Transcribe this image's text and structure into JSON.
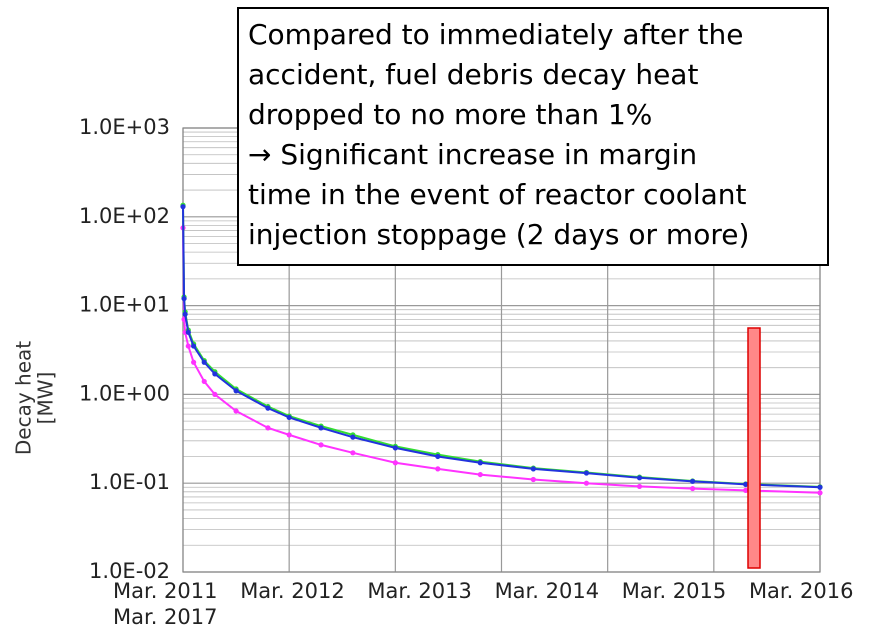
{
  "chart_data": {
    "type": "line",
    "annotation": [
      "Compared to immediately after the",
      "accident, fuel debris decay heat",
      "dropped to no more than 1%",
      "→ Significant increase in margin",
      "time in the event of reactor coolant",
      "injection stoppage (2 days or more)"
    ],
    "ylabel": [
      "Decay heat",
      "[MW]"
    ],
    "log_y": true,
    "grid": true,
    "x": [
      2011.2,
      2011.21,
      2011.22,
      2011.25,
      2011.3,
      2011.4,
      2011.5,
      2011.7,
      2012.0,
      2012.2,
      2012.5,
      2012.8,
      2013.2,
      2013.6,
      2014.0,
      2014.5,
      2015.0,
      2015.5,
      2016.0,
      2016.5,
      2017.2
    ],
    "series": [
      {
        "color": "#ff33ff",
        "values": [
          75,
          7,
          5,
          3.5,
          2.3,
          1.4,
          1.0,
          0.65,
          0.42,
          0.35,
          0.27,
          0.22,
          0.17,
          0.145,
          0.125,
          0.11,
          0.1,
          0.092,
          0.087,
          0.083,
          0.078
        ]
      },
      {
        "color": "#33dd33",
        "values": [
          135,
          12.5,
          8.5,
          5.3,
          3.7,
          2.4,
          1.8,
          1.15,
          0.73,
          0.57,
          0.44,
          0.35,
          0.26,
          0.21,
          0.175,
          0.148,
          0.132,
          0.117,
          0.106,
          0.098,
          0.091
        ]
      },
      {
        "color": "#2233dd",
        "values": [
          130,
          12,
          8,
          5,
          3.5,
          2.3,
          1.7,
          1.1,
          0.7,
          0.55,
          0.42,
          0.33,
          0.25,
          0.2,
          0.17,
          0.145,
          0.13,
          0.115,
          0.105,
          0.097,
          0.09
        ]
      }
    ],
    "xlim": [
      2011.2,
      2017.2
    ],
    "xticks": [
      {
        "value": 2011.2,
        "label": "Mar. 2011"
      },
      {
        "value": 2012.2,
        "label": "Mar. 2012"
      },
      {
        "value": 2013.2,
        "label": "Mar. 2013"
      },
      {
        "value": 2014.2,
        "label": "Mar. 2014"
      },
      {
        "value": 2015.2,
        "label": "Mar. 2015"
      },
      {
        "value": 2016.2,
        "label": "Mar. 2016"
      },
      {
        "value": 2017.2,
        "label": "Mar. 2017"
      }
    ],
    "ylim": [
      0.01,
      1000
    ],
    "yticks": [
      {
        "value": 0.01,
        "label": "1.0E-02"
      },
      {
        "value": 0.1,
        "label": "1.0E-01"
      },
      {
        "value": 1,
        "label": "1.0E+00"
      },
      {
        "value": 10,
        "label": "1.0E+01"
      },
      {
        "value": 100,
        "label": "1.0E+02"
      },
      {
        "value": 1000,
        "label": "1.0E+03"
      }
    ]
  }
}
